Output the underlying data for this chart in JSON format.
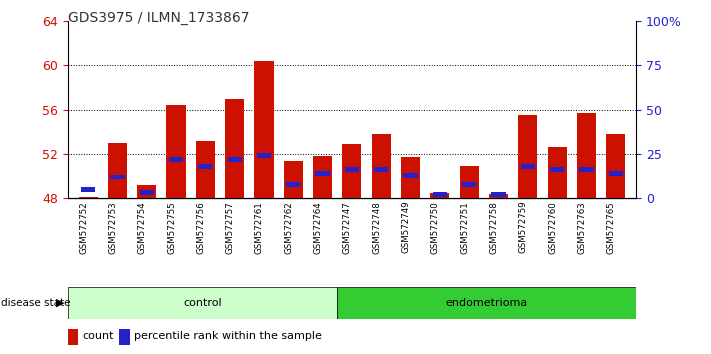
{
  "title": "GDS3975 / ILMN_1733867",
  "samples": [
    "GSM572752",
    "GSM572753",
    "GSM572754",
    "GSM572755",
    "GSM572756",
    "GSM572757",
    "GSM572761",
    "GSM572762",
    "GSM572764",
    "GSM572747",
    "GSM572748",
    "GSM572749",
    "GSM572750",
    "GSM572751",
    "GSM572758",
    "GSM572759",
    "GSM572760",
    "GSM572763",
    "GSM572765"
  ],
  "counts": [
    48.1,
    53.0,
    49.2,
    56.4,
    53.2,
    57.0,
    60.4,
    51.4,
    51.8,
    52.9,
    53.8,
    51.7,
    48.5,
    50.9,
    48.4,
    55.5,
    52.6,
    55.7,
    53.8
  ],
  "percentile": [
    5,
    12,
    3,
    22,
    18,
    22,
    24,
    8,
    14,
    16,
    16,
    13,
    2,
    8,
    2,
    18,
    16,
    16,
    14
  ],
  "groups": [
    "control",
    "control",
    "control",
    "control",
    "control",
    "control",
    "control",
    "control",
    "control",
    "endometrioma",
    "endometrioma",
    "endometrioma",
    "endometrioma",
    "endometrioma",
    "endometrioma",
    "endometrioma",
    "endometrioma",
    "endometrioma",
    "endometrioma"
  ],
  "ylim_left": [
    48,
    64
  ],
  "yticks_left": [
    48,
    52,
    56,
    60,
    64
  ],
  "ylim_right": [
    0,
    100
  ],
  "yticks_right": [
    0,
    25,
    50,
    75,
    100
  ],
  "bar_color_red": "#cc1100",
  "bar_color_blue": "#2222cc",
  "control_color": "#ccffcc",
  "endo_color": "#33cc33",
  "sample_bg_color": "#d8d8d8",
  "title_color": "#333333",
  "left_tick_color": "#cc1100",
  "right_tick_color": "#2222cc",
  "n_control": 9,
  "n_endo": 10
}
